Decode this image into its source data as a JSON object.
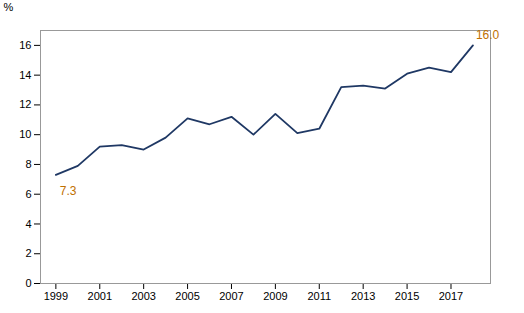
{
  "chart_data": {
    "type": "line",
    "x": [
      1999,
      2000,
      2001,
      2002,
      2003,
      2004,
      2005,
      2006,
      2007,
      2008,
      2009,
      2010,
      2011,
      2012,
      2013,
      2014,
      2015,
      2016,
      2017,
      2018
    ],
    "values": [
      7.3,
      7.9,
      9.2,
      9.3,
      9.0,
      9.8,
      11.1,
      10.7,
      11.2,
      10.0,
      11.4,
      10.1,
      10.4,
      13.2,
      13.3,
      13.1,
      14.1,
      14.5,
      14.2,
      16.0
    ],
    "color": "#1f3864",
    "ylabel": "%",
    "xlim": [
      1998.3,
      2018.8
    ],
    "xticks": [
      1999,
      2001,
      2003,
      2005,
      2007,
      2009,
      2011,
      2013,
      2015,
      2017
    ],
    "ylim": [
      0,
      17
    ],
    "yticks": [
      0,
      2,
      4,
      6,
      8,
      10,
      12,
      14,
      16
    ],
    "grid": false,
    "annotations": [
      {
        "text": "7.3",
        "x": 1999,
        "y": 7.3,
        "color": "#c07000"
      },
      {
        "text": "16.0",
        "x": 2018,
        "y": 16.0,
        "color": "#c07000"
      }
    ]
  }
}
